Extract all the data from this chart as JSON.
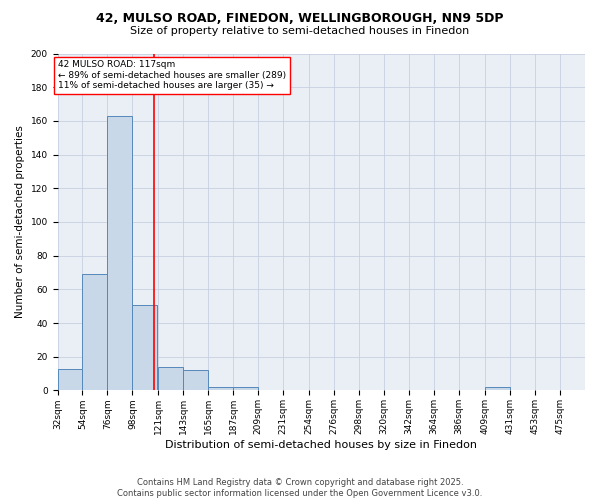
{
  "title": "42, MULSO ROAD, FINEDON, WELLINGBOROUGH, NN9 5DP",
  "subtitle": "Size of property relative to semi-detached houses in Finedon",
  "xlabel": "Distribution of semi-detached houses by size in Finedon",
  "ylabel": "Number of semi-detached properties",
  "footer": "Contains HM Land Registry data © Crown copyright and database right 2025.\nContains public sector information licensed under the Open Government Licence v3.0.",
  "bin_labels": [
    "32sqm",
    "54sqm",
    "76sqm",
    "98sqm",
    "121sqm",
    "143sqm",
    "165sqm",
    "187sqm",
    "209sqm",
    "231sqm",
    "254sqm",
    "276sqm",
    "298sqm",
    "320sqm",
    "342sqm",
    "364sqm",
    "386sqm",
    "409sqm",
    "431sqm",
    "453sqm",
    "475sqm"
  ],
  "bin_edges": [
    32,
    54,
    76,
    98,
    121,
    143,
    165,
    187,
    209,
    231,
    254,
    276,
    298,
    320,
    342,
    364,
    386,
    409,
    431,
    453,
    475
  ],
  "bar_values": [
    13,
    69,
    163,
    51,
    14,
    12,
    2,
    2,
    0,
    0,
    0,
    0,
    0,
    0,
    0,
    0,
    0,
    2,
    0,
    0
  ],
  "bar_color": "#c8d8e8",
  "bar_edge_color": "#5588bb",
  "property_value": 117,
  "vline_color": "red",
  "annotation_text": "42 MULSO ROAD: 117sqm\n← 89% of semi-detached houses are smaller (289)\n11% of semi-detached houses are larger (35) →",
  "annotation_box_color": "white",
  "annotation_box_edge": "red",
  "ylim": [
    0,
    200
  ],
  "yticks": [
    0,
    20,
    40,
    60,
    80,
    100,
    120,
    140,
    160,
    180,
    200
  ],
  "background_color": "#eaeff6",
  "plot_background": "white",
  "grid_color": "#c8cfe0",
  "title_fontsize": 9,
  "subtitle_fontsize": 8,
  "ylabel_fontsize": 7.5,
  "xlabel_fontsize": 8,
  "footer_fontsize": 6,
  "annotation_fontsize": 6.5,
  "tick_fontsize": 6.5
}
